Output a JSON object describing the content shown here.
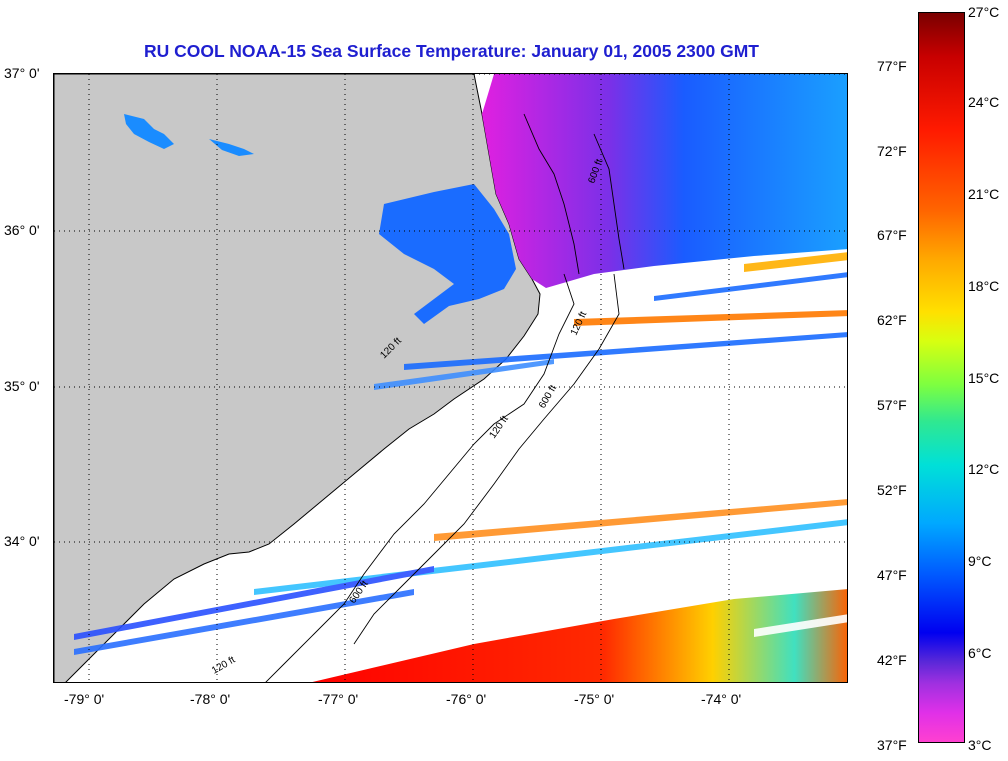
{
  "title": "RU COOL  NOAA-15  Sea Surface Temperature:  January 01, 2005 2300 GMT",
  "lat_labels": [
    "37° 0'",
    "36° 0'",
    "35° 0'",
    "34° 0'"
  ],
  "lon_labels": [
    "-79° 0'",
    "-78° 0'",
    "-77° 0'",
    "-76° 0'",
    "-75° 0'",
    "-74° 0'"
  ],
  "contour_labels": [
    "120 ft",
    "600 ft",
    "120 ft",
    "600 ft",
    "120 ft",
    "600 ft",
    "120 ft"
  ],
  "colorbar": {
    "fahrenheit": [
      "77°F",
      "72°F",
      "67°F",
      "62°F",
      "57°F",
      "52°F",
      "47°F",
      "42°F",
      "37°F"
    ],
    "celsius": [
      "27°C",
      "24°C",
      "21°C",
      "18°C",
      "15°C",
      "12°C",
      "9°C",
      "6°C",
      "3°C"
    ]
  },
  "colors": {
    "land": "#c8c8c8",
    "title": "#1f1fd0",
    "cold_water": "#1a6cff",
    "cool_water": "#e020e0",
    "warm_water": "#ff1a00"
  }
}
